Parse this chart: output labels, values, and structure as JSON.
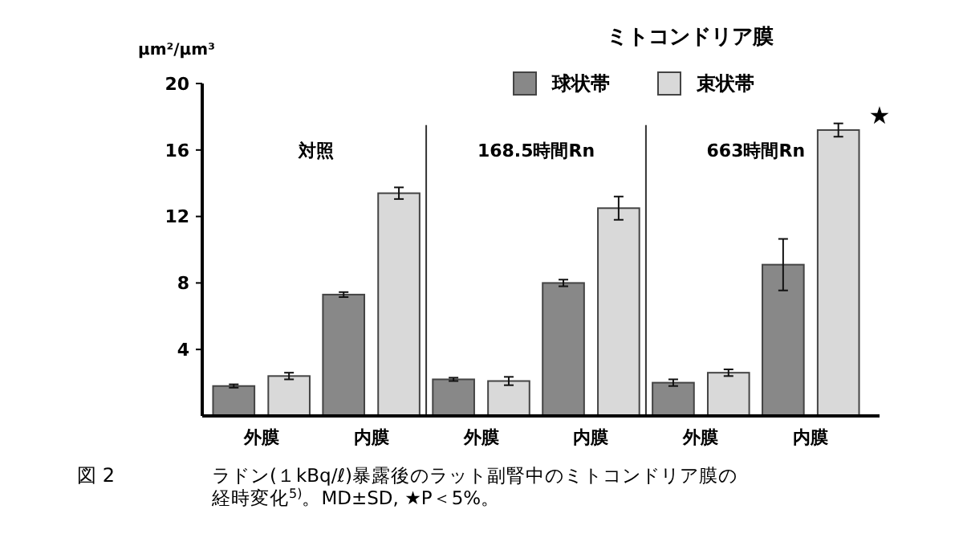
{
  "chart_data": {
    "type": "bar",
    "ylabel": "μm²/μm³",
    "legend_title": "ミトコンドリア膜",
    "legend": "top right",
    "categories": [
      "外膜",
      "内膜",
      "外膜",
      "内膜",
      "外膜",
      "内膜"
    ],
    "series": [
      {
        "name": "球状帯",
        "color": "#888888",
        "values": [
          1.8,
          7.3,
          2.2,
          8.0,
          2.0,
          9.1
        ],
        "errors": [
          0.1,
          0.15,
          0.1,
          0.2,
          0.2,
          1.55
        ]
      },
      {
        "name": "束状帯",
        "color": "#d9d9d9",
        "values": [
          2.4,
          13.4,
          2.1,
          12.5,
          2.6,
          17.2
        ],
        "errors": [
          0.2,
          0.35,
          0.25,
          0.7,
          0.2,
          0.4
        ]
      }
    ],
    "ylim": [
      0,
      20
    ],
    "yticks": [
      4,
      8,
      12,
      16,
      20
    ],
    "annotations": [
      "対照",
      "168.5時間Rn",
      "663時間Rn",
      "★",
      "図 2",
      "ラドン(１kBq/ℓ)暴露後のラット副腎中のミトコンドリア膜の経時変化$^{5)}$。MD±SD,  ★P＜5%。"
    ]
  }
}
